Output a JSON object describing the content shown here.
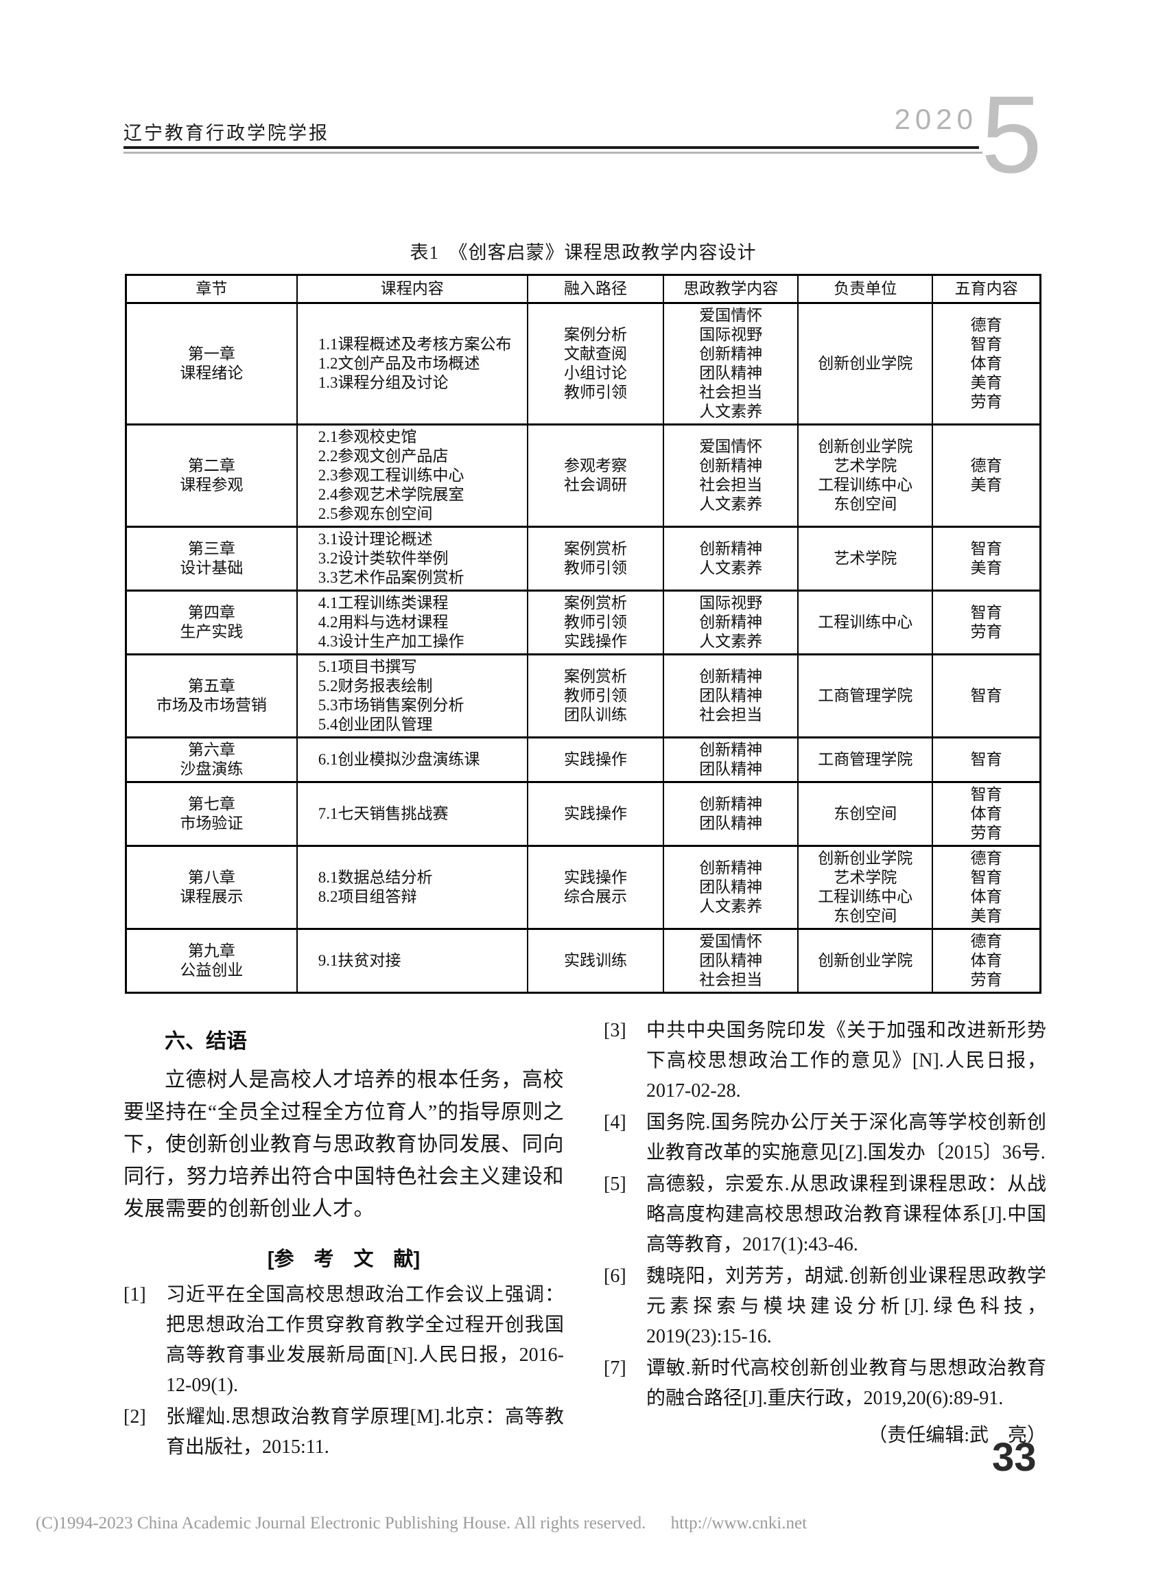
{
  "header": {
    "journal_title": "辽宁教育行政学院学报",
    "year": "2020",
    "issue": "5"
  },
  "table": {
    "caption": "表1　《创客启蒙》课程思政教学内容设计",
    "columns": [
      "章节",
      "课程内容",
      "融入路径",
      "思政教学内容",
      "负责单位",
      "五育内容"
    ],
    "rows": [
      {
        "chapter": "第一章\n课程绪论",
        "content": "1.1课程概述及考核方案公布\n1.2文创产品及市场概述\n1.3课程分组及讨论",
        "path": "案例分析\n文献查阅\n小组讨论\n教师引领",
        "ideology": "爱国情怀\n国际视野\n创新精神\n团队精神\n社会担当\n人文素养",
        "unit": "创新创业学院",
        "five": "德育\n智育\n体育\n美育\n劳育"
      },
      {
        "chapter": "第二章\n课程参观",
        "content": "2.1参观校史馆\n2.2参观文创产品店\n2.3参观工程训练中心\n2.4参观艺术学院展室\n2.5参观东创空间",
        "path": "参观考察\n社会调研",
        "ideology": "爱国情怀\n创新精神\n社会担当\n人文素养",
        "unit": "创新创业学院\n艺术学院\n工程训练中心\n东创空间",
        "five": "德育\n美育"
      },
      {
        "chapter": "第三章\n设计基础",
        "content": "3.1设计理论概述\n3.2设计类软件举例\n3.3艺术作品案例赏析",
        "path": "案例赏析\n教师引领",
        "ideology": "创新精神\n人文素养",
        "unit": "艺术学院",
        "five": "智育\n美育"
      },
      {
        "chapter": "第四章\n生产实践",
        "content": "4.1工程训练类课程\n4.2用料与选材课程\n4.3设计生产加工操作",
        "path": "案例赏析\n教师引领\n实践操作",
        "ideology": "国际视野\n创新精神\n人文素养",
        "unit": "工程训练中心",
        "five": "智育\n劳育"
      },
      {
        "chapter": "第五章\n市场及市场营销",
        "content": "5.1项目书撰写\n5.2财务报表绘制\n5.3市场销售案例分析\n5.4创业团队管理",
        "path": "案例赏析\n教师引领\n团队训练",
        "ideology": "创新精神\n团队精神\n社会担当",
        "unit": "工商管理学院",
        "five": "智育"
      },
      {
        "chapter": "第六章\n沙盘演练",
        "content": "6.1创业模拟沙盘演练课",
        "path": "实践操作",
        "ideology": "创新精神\n团队精神",
        "unit": "工商管理学院",
        "five": "智育"
      },
      {
        "chapter": "第七章\n市场验证",
        "content": "7.1七天销售挑战赛",
        "path": "实践操作",
        "ideology": "创新精神\n团队精神",
        "unit": "东创空间",
        "five": "智育\n体育\n劳育"
      },
      {
        "chapter": "第八章\n课程展示",
        "content": "8.1数据总结分析\n8.2项目组答辩",
        "path": "实践操作\n综合展示",
        "ideology": "创新精神\n团队精神\n人文素养",
        "unit": "创新创业学院\n艺术学院\n工程训练中心\n东创空间",
        "five": "德育\n智育\n体育\n美育"
      },
      {
        "chapter": "第九章\n公益创业",
        "content": "9.1扶贫对接",
        "path": "实践训练",
        "ideology": "爱国情怀\n团队精神\n社会担当",
        "unit": "创新创业学院",
        "five": "德育\n体育\n劳育"
      }
    ]
  },
  "conclusion": {
    "heading": "六、结语",
    "text": "立德树人是高校人才培养的根本任务，高校要坚持在“全员全过程全方位育人”的指导原则之下，使创新创业教育与思政教育协同发展、同向同行，努力培养出符合中国特色社会主义建设和发展需要的创新创业人才。"
  },
  "references": {
    "heading": "[参　考　文　献]",
    "items": [
      {
        "label": "[1]",
        "text": "习近平在全国高校思想政治工作会议上强调：把思想政治工作贯穿教育教学全过程开创我国高等教育事业发展新局面[N].人民日报，2016-12-09(1)."
      },
      {
        "label": "[2]",
        "text": "张耀灿.思想政治教育学原理[M].北京：高等教育出版社，2015:11."
      },
      {
        "label": "[3]",
        "text": "中共中央国务院印发《关于加强和改进新形势下高校思想政治工作的意见》[N].人民日报，2017-02-28."
      },
      {
        "label": "[4]",
        "text": "国务院.国务院办公厅关于深化高等学校创新创业教育改革的实施意见[Z].国发办〔2015〕36号."
      },
      {
        "label": "[5]",
        "text": "高德毅，宗爱东.从思政课程到课程思政：从战略高度构建高校思想政治教育课程体系[J].中国高等教育，2017(1):43-46."
      },
      {
        "label": "[6]",
        "text": "魏晓阳，刘芳芳，胡斌.创新创业课程思政教学元素探索与模块建设分析[J].绿色科技，2019(23):15-16."
      },
      {
        "label": "[7]",
        "text": "谭敏.新时代高校创新创业教育与思想政治教育的融合路径[J].重庆行政，2019,20(6):89-91."
      }
    ],
    "editor_note": "（责任编辑:武　亮）"
  },
  "page_number": "33",
  "footer": {
    "copyright": "(C)1994-2023 China Academic Journal Electronic Publishing House. All rights reserved.",
    "url": "http://www.cnki.net"
  }
}
